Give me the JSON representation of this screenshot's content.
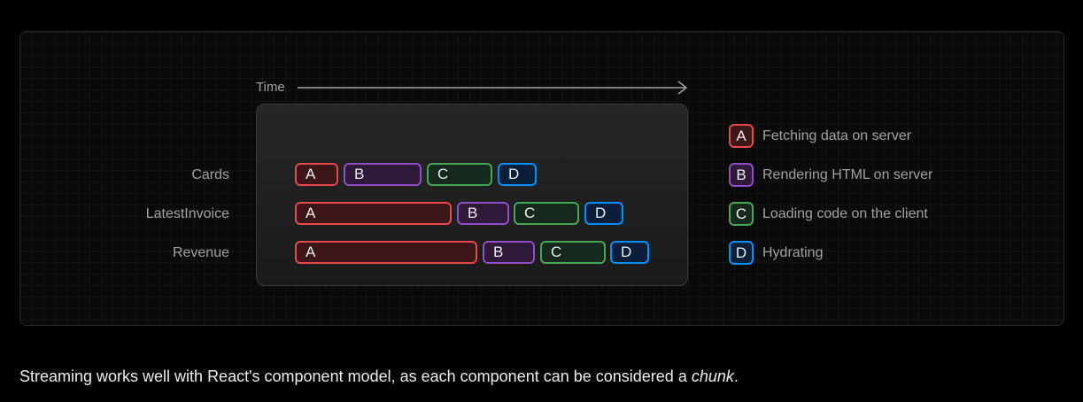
{
  "diagram": {
    "time_label": "Time",
    "rows": [
      {
        "label": "Cards",
        "chunks": [
          {
            "letter": "A",
            "kind": "a"
          },
          {
            "letter": "B",
            "kind": "b"
          },
          {
            "letter": "C",
            "kind": "c"
          },
          {
            "letter": "D",
            "kind": "d"
          }
        ]
      },
      {
        "label": "LatestInvoice",
        "chunks": [
          {
            "letter": "A",
            "kind": "a"
          },
          {
            "letter": "B",
            "kind": "b"
          },
          {
            "letter": "C",
            "kind": "c"
          },
          {
            "letter": "D",
            "kind": "d"
          }
        ]
      },
      {
        "label": "Revenue",
        "chunks": [
          {
            "letter": "A",
            "kind": "a"
          },
          {
            "letter": "B",
            "kind": "b"
          },
          {
            "letter": "C",
            "kind": "c"
          },
          {
            "letter": "D",
            "kind": "d"
          }
        ]
      }
    ],
    "legend": [
      {
        "letter": "A",
        "text": "Fetching data on server",
        "color": "#e5484d"
      },
      {
        "letter": "B",
        "text": "Rendering HTML on server",
        "color": "#8e4ec6"
      },
      {
        "letter": "C",
        "text": "Loading code on the client",
        "color": "#46a758"
      },
      {
        "letter": "D",
        "text": "Hydrating",
        "color": "#0090ff"
      }
    ]
  },
  "caption": {
    "prefix": "Streaming works well with React's component model, as each component can be considered a ",
    "emphasis": "chunk",
    "suffix": "."
  }
}
